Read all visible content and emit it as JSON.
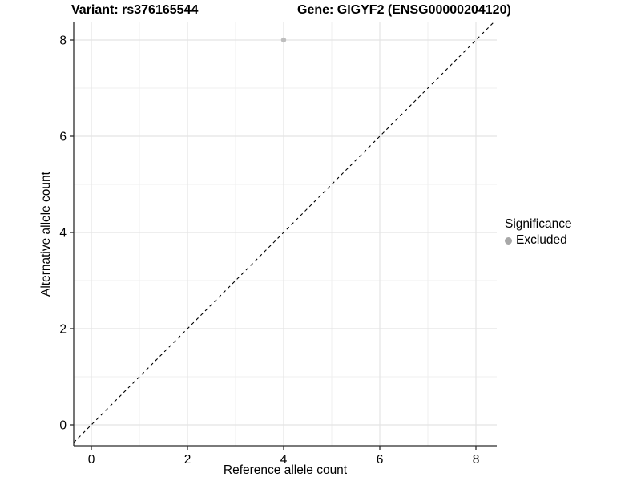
{
  "titles": {
    "variant_title": "Variant: rs376165544",
    "gene_title": "Gene: GIGYF2 (ENSG00000204120)"
  },
  "legend": {
    "title": "Significance",
    "items": [
      {
        "label": "Excluded",
        "color": "#a8a8a8"
      }
    ]
  },
  "chart_data": {
    "type": "scatter",
    "title": "Variant: rs376165544 | Gene: GIGYF2 (ENSG00000204120)",
    "xlabel": "Reference allele count",
    "ylabel": "Alternative allele count",
    "xlim": [
      -0.37,
      8.43
    ],
    "ylim": [
      -0.43,
      8.37
    ],
    "x_ticks": [
      0,
      2,
      4,
      6,
      8
    ],
    "y_ticks": [
      0,
      2,
      4,
      6,
      8
    ],
    "grid": {
      "major": [
        0,
        2,
        4,
        6,
        8
      ],
      "minor": [
        1,
        3,
        5,
        7
      ]
    },
    "series": [
      {
        "name": "Excluded",
        "color": "#bebebe",
        "points": [
          {
            "x": 4,
            "y": 8
          }
        ]
      }
    ],
    "reference_line": {
      "type": "identity y=x",
      "style": "dashed",
      "color": "#000000"
    },
    "legend_position": "right",
    "legend_title": "Significance"
  },
  "style_colors": {
    "grid_major": "#e4e4e4",
    "grid_minor": "#efefef",
    "axis": "#2b2b2b",
    "background": "#ffffff"
  }
}
